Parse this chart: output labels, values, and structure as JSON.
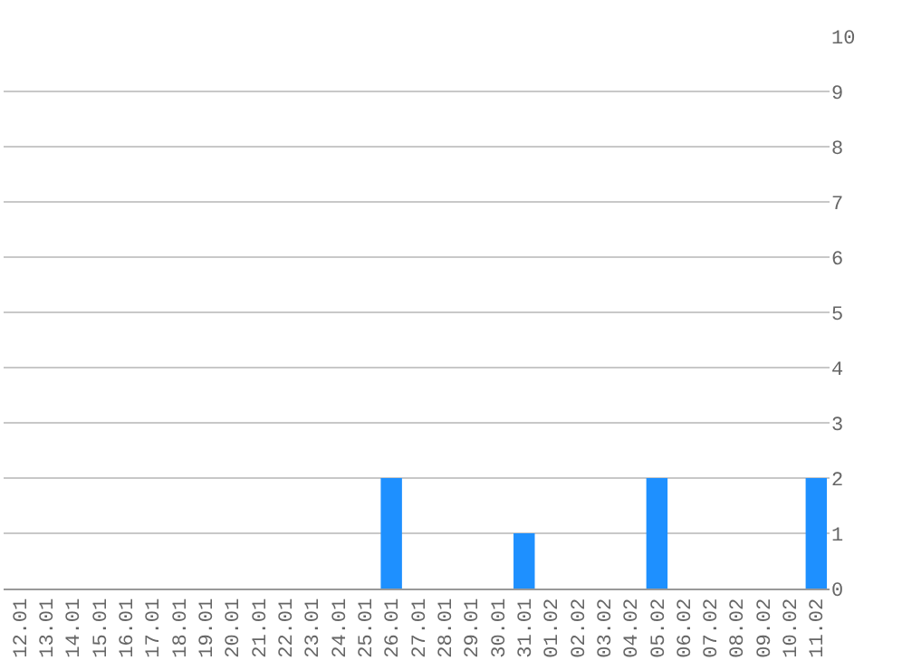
{
  "chart_data": {
    "type": "bar",
    "categories": [
      "12.01",
      "13.01",
      "14.01",
      "15.01",
      "16.01",
      "17.01",
      "18.01",
      "19.01",
      "20.01",
      "21.01",
      "22.01",
      "23.01",
      "24.01",
      "25.01",
      "26.01",
      "27.01",
      "28.01",
      "29.01",
      "30.01",
      "31.01",
      "01.02",
      "02.02",
      "03.02",
      "04.02",
      "05.02",
      "06.02",
      "07.02",
      "08.02",
      "09.02",
      "10.02",
      "11.02"
    ],
    "values": [
      0,
      0,
      0,
      0,
      0,
      0,
      0,
      0,
      0,
      0,
      0,
      0,
      0,
      0,
      2,
      0,
      0,
      0,
      0,
      1,
      0,
      0,
      0,
      0,
      2,
      0,
      0,
      0,
      0,
      0,
      2
    ],
    "color": "#1e90ff",
    "ylim": [
      0,
      10
    ],
    "yticks": [
      0,
      1,
      2,
      3,
      4,
      5,
      6,
      7,
      8,
      9,
      10
    ],
    "grid": "y"
  }
}
